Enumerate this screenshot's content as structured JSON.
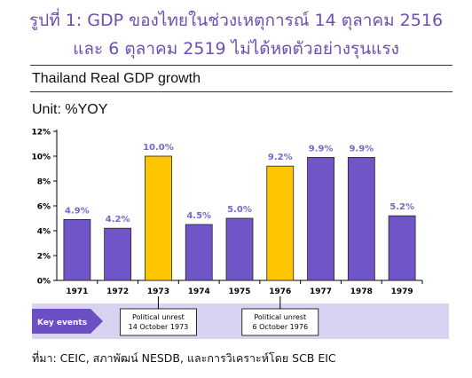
{
  "header": {
    "title_line1": "รูปที่ 1: GDP ของไทยในช่วงเหตุการณ์ 14 ตุลาคม 2516",
    "title_line2": "และ 6 ตุลาคม 2519 ไม่ได้หดตัวอย่างรุนแรง",
    "chart_title": "Thailand Real GDP growth",
    "unit": "Unit: %YOY"
  },
  "timeline": {
    "label": "Key events",
    "events": [
      {
        "year": "1973",
        "text": [
          "Political unrest",
          "14 October 1973"
        ]
      },
      {
        "year": "1976",
        "text": [
          "Political unrest",
          "6 October 1976"
        ]
      }
    ]
  },
  "source": "ที่มา:    CEIC, สภาพัฒน์ NESDB, และการวิเคราะห์โดย SCB EIC",
  "colors": {
    "normal": "#6f55c7",
    "highlight": "#fdc600",
    "label": "#7b66c7",
    "band": "#d7d3f1",
    "band_dark": "#6c4fc2",
    "title": "#6b4fb3"
  },
  "chart_data": {
    "type": "bar",
    "categories": [
      "1971",
      "1972",
      "1973",
      "1974",
      "1975",
      "1976",
      "1977",
      "1978",
      "1979"
    ],
    "values": [
      4.9,
      4.2,
      10.0,
      4.5,
      5.0,
      9.2,
      9.9,
      9.9,
      5.2
    ],
    "data_labels": [
      "4.9%",
      "4.2%",
      "10.0%",
      "4.5%",
      "5.0%",
      "9.2%",
      "9.9%",
      "9.9%",
      "5.2%"
    ],
    "highlight": [
      "1973",
      "1976"
    ],
    "ylim": [
      0,
      12
    ],
    "yticks": [
      0,
      2,
      4,
      6,
      8,
      10,
      12
    ],
    "ytick_labels": [
      "0%",
      "2%",
      "4%",
      "6%",
      "8%",
      "10%",
      "12%"
    ],
    "grid": false,
    "title": "Thailand Real GDP growth",
    "ylabel": "Unit: %YOY"
  }
}
